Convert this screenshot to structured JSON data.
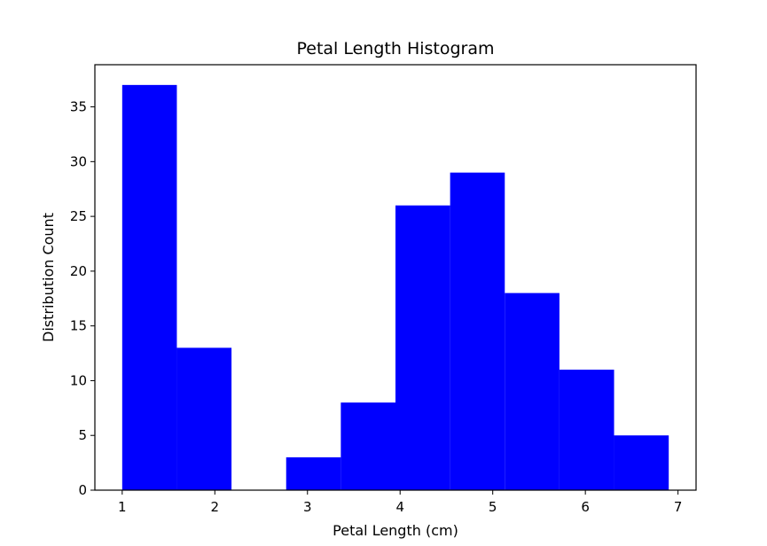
{
  "chart_data": {
    "type": "bar",
    "title": "Petal Length Histogram",
    "xlabel": "Petal Length (cm)",
    "ylabel": "Distribution Count",
    "bar_color": "#0000ff",
    "xlim": [
      0.705,
      7.195
    ],
    "ylim": [
      0,
      38.85
    ],
    "x_ticks": [
      1,
      2,
      3,
      4,
      5,
      6,
      7
    ],
    "y_ticks": [
      0,
      5,
      10,
      15,
      20,
      25,
      30,
      35
    ],
    "bins": [
      {
        "x0": 1.0,
        "x1": 1.59,
        "value": 37
      },
      {
        "x0": 1.59,
        "x1": 2.18,
        "value": 13
      },
      {
        "x0": 2.18,
        "x1": 2.77,
        "value": 0
      },
      {
        "x0": 2.77,
        "x1": 3.36,
        "value": 3
      },
      {
        "x0": 3.36,
        "x1": 3.95,
        "value": 8
      },
      {
        "x0": 3.95,
        "x1": 4.54,
        "value": 26
      },
      {
        "x0": 4.54,
        "x1": 5.13,
        "value": 29
      },
      {
        "x0": 5.13,
        "x1": 5.72,
        "value": 18
      },
      {
        "x0": 5.72,
        "x1": 6.31,
        "value": 11
      },
      {
        "x0": 6.31,
        "x1": 6.9,
        "value": 5
      }
    ],
    "grid": false,
    "legend": "none"
  }
}
